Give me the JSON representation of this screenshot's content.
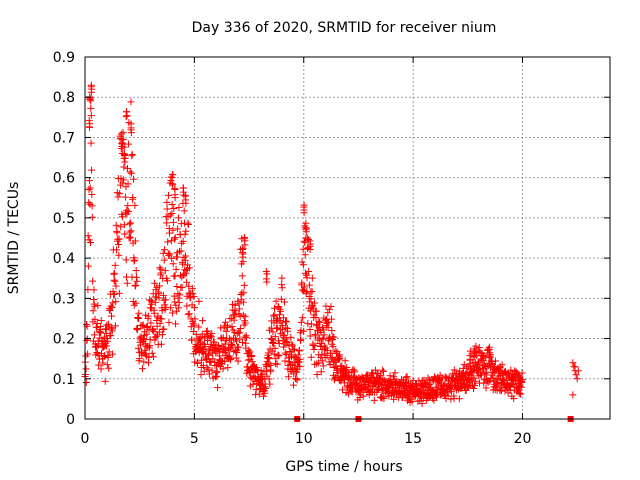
{
  "chart_data": {
    "type": "scatter",
    "title": "Day 336 of 2020, SRMTID for receiver nium",
    "xlabel": "GPS time / hours",
    "ylabel": "SRMTID / TECUs",
    "xlim": [
      0,
      24
    ],
    "ylim": [
      0,
      0.9
    ],
    "xticks": [
      0,
      5,
      10,
      15,
      20
    ],
    "xtick_labels": [
      "0",
      "5",
      "10",
      "15",
      "20"
    ],
    "yticks": [
      0,
      0.1,
      0.2,
      0.3,
      0.4,
      0.5,
      0.6,
      0.7,
      0.8,
      0.9
    ],
    "ytick_labels": [
      "0",
      "0.1",
      "0.2",
      "0.3",
      "0.4",
      "0.5",
      "0.6",
      "0.7",
      "0.8",
      "0.9"
    ],
    "grid": true,
    "marker": "+",
    "colors": {
      "series": "#ff0000",
      "grid": "#a0a0a0",
      "axis": "#000000"
    },
    "series": [
      {
        "name": "SRMTID",
        "profile": [
          [
            0.0,
            0.12
          ],
          [
            0.1,
            0.18
          ],
          [
            0.2,
            0.55
          ],
          [
            0.3,
            0.72
          ],
          [
            0.35,
            0.3
          ],
          [
            0.5,
            0.2
          ],
          [
            0.8,
            0.17
          ],
          [
            1.0,
            0.19
          ],
          [
            1.2,
            0.25
          ],
          [
            1.4,
            0.35
          ],
          [
            1.6,
            0.55
          ],
          [
            1.75,
            0.65
          ],
          [
            1.9,
            0.45
          ],
          [
            2.1,
            0.62
          ],
          [
            2.3,
            0.4
          ],
          [
            2.4,
            0.22
          ],
          [
            2.7,
            0.18
          ],
          [
            3.0,
            0.23
          ],
          [
            3.3,
            0.26
          ],
          [
            3.6,
            0.3
          ],
          [
            3.8,
            0.4
          ],
          [
            4.0,
            0.45
          ],
          [
            4.2,
            0.35
          ],
          [
            4.5,
            0.45
          ],
          [
            4.7,
            0.35
          ],
          [
            5.0,
            0.22
          ],
          [
            5.5,
            0.17
          ],
          [
            6.0,
            0.14
          ],
          [
            6.5,
            0.2
          ],
          [
            7.0,
            0.22
          ],
          [
            7.2,
            0.35
          ],
          [
            7.4,
            0.15
          ],
          [
            7.8,
            0.1
          ],
          [
            8.2,
            0.09
          ],
          [
            8.6,
            0.2
          ],
          [
            9.0,
            0.25
          ],
          [
            9.3,
            0.18
          ],
          [
            9.6,
            0.12
          ],
          [
            9.8,
            0.15
          ],
          [
            10.0,
            0.4
          ],
          [
            10.2,
            0.35
          ],
          [
            10.5,
            0.2
          ],
          [
            10.8,
            0.18
          ],
          [
            11.0,
            0.22
          ],
          [
            11.3,
            0.2
          ],
          [
            11.6,
            0.12
          ],
          [
            12.0,
            0.1
          ],
          [
            12.5,
            0.08
          ],
          [
            13.0,
            0.09
          ],
          [
            14.0,
            0.08
          ],
          [
            15.0,
            0.07
          ],
          [
            16.0,
            0.08
          ],
          [
            17.0,
            0.09
          ],
          [
            17.5,
            0.1
          ],
          [
            18.0,
            0.14
          ],
          [
            18.5,
            0.12
          ],
          [
            19.0,
            0.1
          ],
          [
            19.5,
            0.09
          ],
          [
            20.0,
            0.1
          ]
        ],
        "segments": [
          [
            0.0,
            12.6
          ],
          [
            12.6,
            20.0
          ],
          [
            22.3,
            22.6
          ]
        ],
        "peaks": [
          [
            0.3,
            0.83
          ],
          [
            0.25,
            0.8
          ],
          [
            0.2,
            0.75
          ],
          [
            1.9,
            0.78
          ],
          [
            2.1,
            0.74
          ],
          [
            1.7,
            0.7
          ],
          [
            1.8,
            0.68
          ],
          [
            4.0,
            0.61
          ],
          [
            4.1,
            0.58
          ],
          [
            4.5,
            0.58
          ],
          [
            4.6,
            0.56
          ],
          [
            7.3,
            0.46
          ],
          [
            7.2,
            0.44
          ],
          [
            10.0,
            0.54
          ],
          [
            10.1,
            0.5
          ],
          [
            10.3,
            0.45
          ],
          [
            8.3,
            0.37
          ],
          [
            18.5,
            0.19
          ],
          [
            17.6,
            0.17
          ],
          [
            17.8,
            0.18
          ]
        ],
        "late_points": [
          [
            22.3,
            0.14
          ],
          [
            22.35,
            0.13
          ],
          [
            22.4,
            0.12
          ],
          [
            22.45,
            0.11
          ],
          [
            22.5,
            0.1
          ],
          [
            22.55,
            0.12
          ],
          [
            22.4,
            0.13
          ],
          [
            22.3,
            0.06
          ]
        ],
        "zero_markers": [
          9.7,
          12.5,
          22.2
        ]
      }
    ]
  }
}
